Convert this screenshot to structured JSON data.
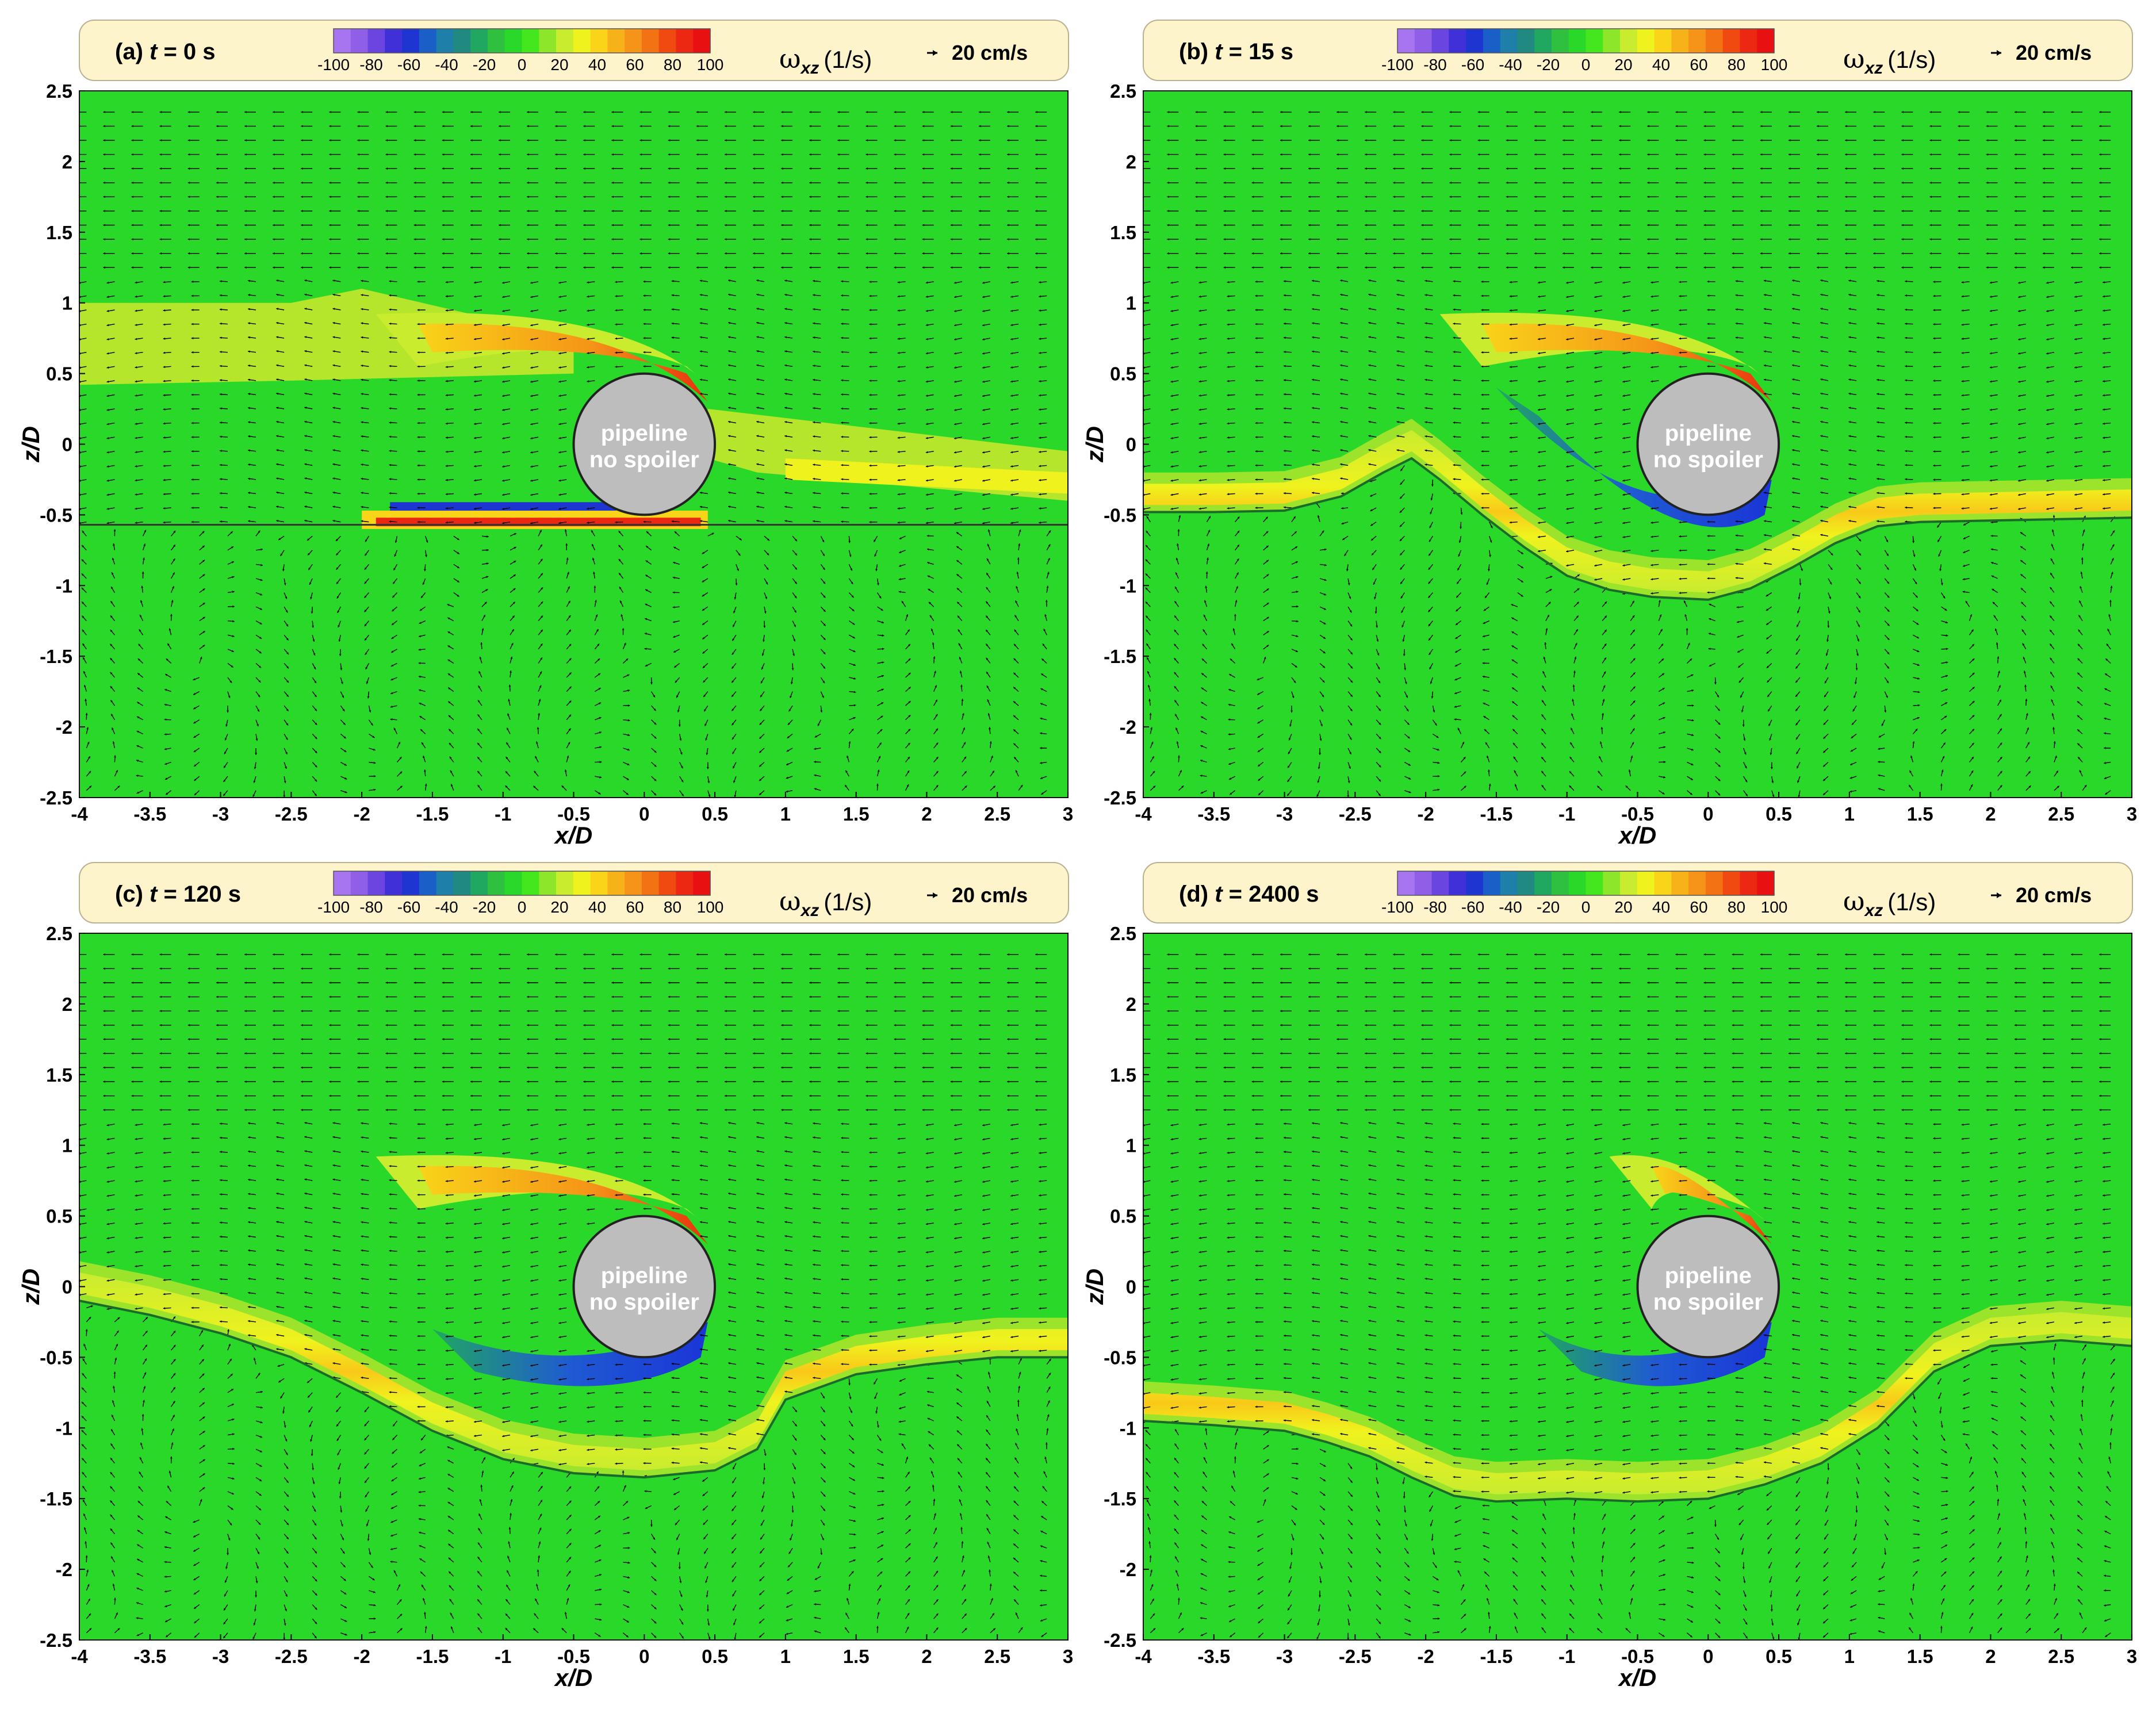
{
  "figure": {
    "field_label_symbol": "ω",
    "field_label_subscript": "xz",
    "field_label_unit": "(1/s)",
    "vector_reference": "20 cm/s",
    "pipeline_label_line1": "pipeline",
    "pipeline_label_line2": "no spoiler"
  },
  "colorbar": {
    "ticks": [
      "-100",
      "-80",
      "-60",
      "-40",
      "-20",
      "0",
      "20",
      "40",
      "60",
      "80",
      "100"
    ],
    "colors": [
      "#a875f0",
      "#8f5fe8",
      "#6a45e0",
      "#3f30d8",
      "#1f35d2",
      "#1a5fc8",
      "#1e7fa8",
      "#208a80",
      "#20a860",
      "#30c040",
      "#2ad82a",
      "#44e61e",
      "#8ee62a",
      "#c9ec2e",
      "#f0f21e",
      "#f9d419",
      "#f7b21a",
      "#f59418",
      "#f27214",
      "#f04a10",
      "#ec2812",
      "#e81010"
    ],
    "colors_x_range": [
      -100,
      100
    ]
  },
  "chart_data": [
    {
      "type": "vector-field-contour",
      "title": "(a) t = 0 s",
      "title_prefix": "(a)",
      "title_t": "t",
      "title_rest": " = 0 s",
      "xlabel": "x/D",
      "ylabel": "z/D",
      "xlim": [
        -4,
        3
      ],
      "ylim": [
        -2.5,
        2.5
      ],
      "xticks": [
        -4,
        -3.5,
        -3,
        -2.5,
        -2,
        -1.5,
        -1,
        -0.5,
        0,
        0.5,
        1,
        1.5,
        2,
        2.5,
        3
      ],
      "yticks": [
        2.5,
        2,
        1.5,
        1,
        0.5,
        0,
        -0.5,
        -1,
        -1.5,
        -2,
        -2.5
      ],
      "pipe_center": [
        0,
        0
      ],
      "pipe_radius": 0.5,
      "seabed_profile": {
        "x": [
          -4,
          3
        ],
        "z": [
          -0.57,
          -0.57
        ]
      }
    },
    {
      "type": "vector-field-contour",
      "title": "(b) t = 15 s",
      "title_prefix": "(b)",
      "title_t": "t",
      "title_rest": " = 15 s",
      "xlabel": "x/D",
      "ylabel": "z/D",
      "xlim": [
        -4,
        3
      ],
      "ylim": [
        -2.5,
        2.5
      ],
      "xticks": [
        -4,
        -3.5,
        -3,
        -2.5,
        -2,
        -1.5,
        -1,
        -0.5,
        0,
        0.5,
        1,
        1.5,
        2,
        2.5,
        3
      ],
      "yticks": [
        2.5,
        2,
        1.5,
        1,
        0.5,
        0,
        -0.5,
        -1,
        -1.5,
        -2,
        -2.5
      ],
      "pipe_center": [
        0,
        0
      ],
      "pipe_radius": 0.5,
      "seabed_profile": {
        "x": [
          -4,
          -3.5,
          -3,
          -2.6,
          -2.3,
          -2.1,
          -1.9,
          -1.6,
          -1.3,
          -1.0,
          -0.7,
          -0.4,
          0,
          0.3,
          0.6,
          0.9,
          1.2,
          1.5,
          2.0,
          2.5,
          3
        ],
        "z": [
          -0.48,
          -0.48,
          -0.47,
          -0.37,
          -0.2,
          -0.1,
          -0.25,
          -0.5,
          -0.73,
          -0.93,
          -1.03,
          -1.08,
          -1.1,
          -1.02,
          -0.87,
          -0.7,
          -0.58,
          -0.55,
          -0.54,
          -0.53,
          -0.52
        ]
      }
    },
    {
      "type": "vector-field-contour",
      "title": "(c) t = 120 s",
      "title_prefix": "(c)",
      "title_t": "t",
      "title_rest": " = 120 s",
      "xlabel": "x/D",
      "ylabel": "z/D",
      "xlim": [
        -4,
        3
      ],
      "ylim": [
        -2.5,
        2.5
      ],
      "xticks": [
        -4,
        -3.5,
        -3,
        -2.5,
        -2,
        -1.5,
        -1,
        -0.5,
        0,
        0.5,
        1,
        1.5,
        2,
        2.5,
        3
      ],
      "yticks": [
        2.5,
        2,
        1.5,
        1,
        0.5,
        0,
        -0.5,
        -1,
        -1.5,
        -2,
        -2.5
      ],
      "pipe_center": [
        0,
        0
      ],
      "pipe_radius": 0.5,
      "seabed_profile": {
        "x": [
          -4,
          -3.5,
          -3,
          -2.5,
          -2.0,
          -1.5,
          -1.0,
          -0.5,
          0,
          0.5,
          0.8,
          1.0,
          1.5,
          2.0,
          2.5,
          3
        ],
        "z": [
          -0.1,
          -0.2,
          -0.33,
          -0.5,
          -0.75,
          -1.02,
          -1.22,
          -1.32,
          -1.35,
          -1.3,
          -1.15,
          -0.8,
          -0.62,
          -0.55,
          -0.5,
          -0.5
        ]
      }
    },
    {
      "type": "vector-field-contour",
      "title": "(d) t = 2400 s",
      "title_prefix": "(d)",
      "title_t": "t",
      "title_rest": " = 2400 s",
      "xlabel": "x/D",
      "ylabel": "z/D",
      "xlim": [
        -4,
        3
      ],
      "ylim": [
        -2.5,
        2.5
      ],
      "xticks": [
        -4,
        -3.5,
        -3,
        -2.5,
        -2,
        -1.5,
        -1,
        -0.5,
        0,
        0.5,
        1,
        1.5,
        2,
        2.5,
        3
      ],
      "yticks": [
        2.5,
        2,
        1.5,
        1,
        0.5,
        0,
        -0.5,
        -1,
        -1.5,
        -2,
        -2.5
      ],
      "pipe_center": [
        0,
        0
      ],
      "pipe_radius": 0.5,
      "seabed_profile": {
        "x": [
          -4,
          -3.5,
          -3.0,
          -2.7,
          -2.4,
          -2.1,
          -1.8,
          -1.5,
          -1.0,
          -0.5,
          0,
          0.4,
          0.8,
          1.2,
          1.6,
          2.0,
          2.5,
          3
        ],
        "z": [
          -0.95,
          -0.98,
          -1.02,
          -1.1,
          -1.2,
          -1.35,
          -1.48,
          -1.52,
          -1.5,
          -1.52,
          -1.5,
          -1.4,
          -1.25,
          -1.0,
          -0.6,
          -0.42,
          -0.38,
          -0.42
        ]
      }
    }
  ]
}
